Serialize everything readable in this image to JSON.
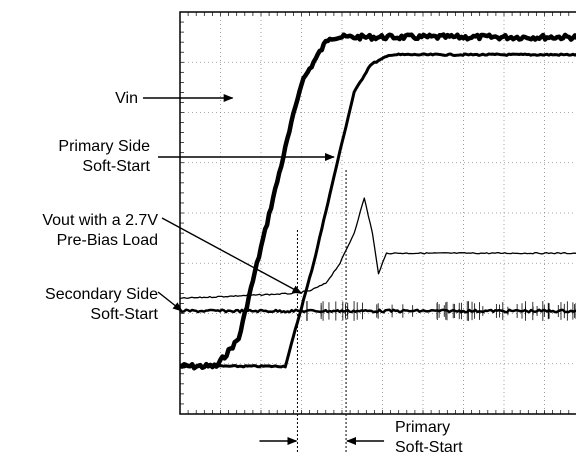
{
  "chart_data": {
    "type": "line",
    "title": "",
    "xlabel": "",
    "ylabel": "",
    "grid": true,
    "grid_divisions": {
      "x": 10,
      "y": 8
    },
    "series": [
      {
        "name": "Vin",
        "color": "#000000",
        "x": [
          0.0,
          0.9,
          1.45,
          3.0,
          3.6,
          3.7,
          10.0
        ],
        "y": [
          7.05,
          7.05,
          6.5,
          1.4,
          0.6,
          0.5,
          0.5
        ]
      },
      {
        "name": "Primary Side Soft-Start",
        "color": "#000000",
        "x": [
          0.0,
          2.6,
          3.3,
          4.0,
          4.3,
          4.7,
          5.2,
          10.0
        ],
        "y": [
          7.05,
          7.05,
          5.0,
          2.6,
          1.6,
          1.05,
          0.85,
          0.85
        ]
      },
      {
        "name": "Vout with a 2.7V Pre-Bias Load",
        "color": "#000000",
        "x": [
          0.0,
          2.8,
          3.2,
          3.6,
          3.95,
          4.3,
          4.55,
          4.75,
          4.9,
          5.1,
          10.0
        ],
        "y": [
          5.7,
          5.6,
          5.55,
          5.4,
          5.0,
          4.4,
          3.7,
          4.4,
          5.2,
          4.8,
          4.8
        ]
      },
      {
        "name": "Secondary Side Soft-Start",
        "color": "#000000",
        "x": [
          0.0,
          10.0
        ],
        "y": [
          5.95,
          5.95
        ]
      }
    ],
    "annotations": [
      {
        "text": "Vin",
        "points_to": "Vin"
      },
      {
        "text": "Primary Side\nSoft-Start",
        "points_to": "Primary Side Soft-Start"
      },
      {
        "text": "Vout with a 2.7V\nPre-Bias Load",
        "points_to": "Vout with a 2.7V Pre-Bias Load"
      },
      {
        "text": "Secondary Side\nSoft-Start",
        "points_to": "Secondary Side Soft-Start"
      },
      {
        "text": "Primary\nSoft-Start",
        "marks_interval": [
          2.9,
          4.1
        ]
      }
    ]
  },
  "labels": {
    "vin": "Vin",
    "primary_side_line1": "Primary Side",
    "primary_side_line2": "Soft-Start",
    "vout_line1": "Vout with a 2.7V",
    "vout_line2": "Pre-Bias Load",
    "secondary_line1": "Secondary Side",
    "secondary_line2": "Soft-Start",
    "primary_ss_line1": "Primary",
    "primary_ss_line2": "Soft-Start"
  }
}
